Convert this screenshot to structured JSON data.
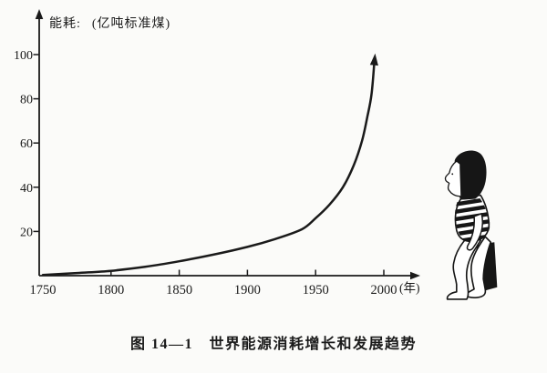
{
  "figure": {
    "y_axis_title": "能耗:",
    "y_axis_unit": "(亿吨标准煤)",
    "x_axis_unit": "(年)",
    "caption": "图 14—1　世界能源消耗增长和发展趋势"
  },
  "chart_data": {
    "type": "line",
    "title": "世界能源消耗增长和发展趋势",
    "xlabel": "年",
    "ylabel": "能耗 (亿吨标准煤)",
    "x_ticks": [
      "1750",
      "1800",
      "1850",
      "1900",
      "1950",
      "2000"
    ],
    "y_ticks": [
      "20",
      "40",
      "60",
      "80",
      "100"
    ],
    "xlim": [
      1750,
      2005
    ],
    "ylim": [
      0,
      105
    ],
    "grid": false,
    "legend": "none",
    "trend_arrow_at_end": true,
    "series": [
      {
        "name": "世界能源消耗",
        "points": [
          [
            1750,
            0.3
          ],
          [
            1775,
            1.2
          ],
          [
            1800,
            2.2
          ],
          [
            1825,
            4
          ],
          [
            1850,
            6.5
          ],
          [
            1875,
            9.5
          ],
          [
            1900,
            13
          ],
          [
            1920,
            16.5
          ],
          [
            1940,
            21
          ],
          [
            1950,
            26
          ],
          [
            1960,
            32
          ],
          [
            1970,
            40
          ],
          [
            1978,
            50
          ],
          [
            1984,
            61
          ],
          [
            1988,
            72
          ],
          [
            1991,
            82
          ],
          [
            1993,
            96
          ]
        ]
      }
    ]
  },
  "colors": {
    "ink": "#1a1a1a",
    "paper": "#fbfbf9"
  }
}
